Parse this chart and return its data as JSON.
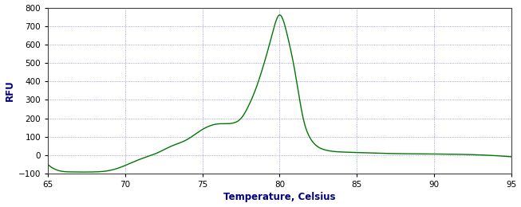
{
  "xlabel": "Temperature, Celsius",
  "ylabel": "RFU",
  "xlim": [
    65,
    95
  ],
  "ylim": [
    -100,
    800
  ],
  "xticks": [
    65,
    70,
    75,
    80,
    85,
    90,
    95
  ],
  "yticks": [
    -100,
    0,
    100,
    200,
    300,
    400,
    500,
    600,
    700,
    800
  ],
  "line_color": "#007700",
  "background_color": "#ffffff",
  "grid_color": "#5555aa",
  "tick_label_color": "#000000",
  "label_color_x": "#000080",
  "label_color_y": "#000080",
  "spine_color": "#404040"
}
